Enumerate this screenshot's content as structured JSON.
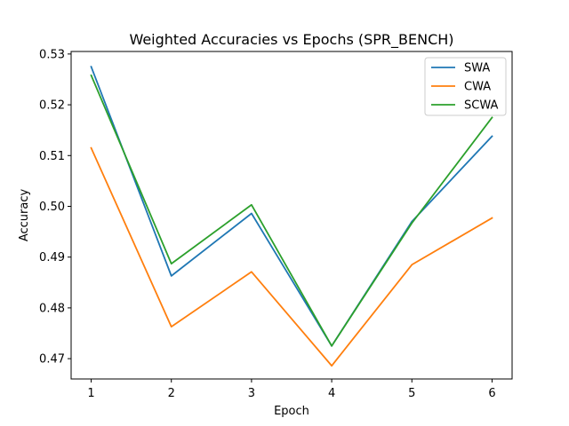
{
  "chart_data": {
    "type": "line",
    "title": "Weighted Accuracies vs Epochs (SPR_BENCH)",
    "xlabel": "Epoch",
    "ylabel": "Accuracy",
    "x": [
      1,
      2,
      3,
      4,
      5,
      6
    ],
    "xticks": [
      "1",
      "2",
      "3",
      "4",
      "5",
      "6"
    ],
    "yticks": [
      "0.47",
      "0.48",
      "0.49",
      "0.50",
      "0.51",
      "0.52",
      "0.53"
    ],
    "ytick_values": [
      0.47,
      0.48,
      0.49,
      0.5,
      0.51,
      0.52,
      0.53
    ],
    "xlim": [
      0.75,
      6.25
    ],
    "ylim": [
      0.466,
      0.5305
    ],
    "grid": false,
    "legend_position": "top-right",
    "series": [
      {
        "name": "SWA",
        "color": "#1f77b4",
        "values": [
          0.5275,
          0.4863,
          0.4986,
          0.4725,
          0.497,
          0.5138
        ]
      },
      {
        "name": "CWA",
        "color": "#ff7f0e",
        "values": [
          0.5115,
          0.4763,
          0.4871,
          0.4686,
          0.4885,
          0.4977
        ]
      },
      {
        "name": "SCWA",
        "color": "#2ca02c",
        "values": [
          0.5258,
          0.4887,
          0.5003,
          0.4725,
          0.4967,
          0.5175
        ]
      }
    ]
  }
}
